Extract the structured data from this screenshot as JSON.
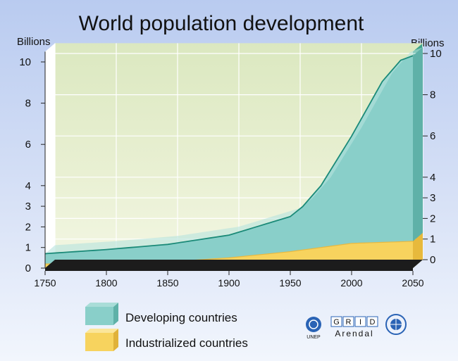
{
  "chart_data": {
    "type": "area",
    "title": "World population development",
    "ylabel_left": "Billions",
    "ylabel_right": "Billions",
    "x_ticks": [
      1750,
      1800,
      1850,
      1900,
      1950,
      2000,
      2050
    ],
    "y_ticks_left": [
      0,
      1,
      2,
      3,
      4,
      6,
      8,
      10
    ],
    "y_ticks_right": [
      0,
      1,
      2,
      3,
      4,
      6,
      8,
      10
    ],
    "xlim": [
      1750,
      2050
    ],
    "ylim": [
      0,
      10.5
    ],
    "stacked": true,
    "grid": true,
    "series": [
      {
        "name": "Industrialized countries",
        "color": "#f7d35e",
        "x": [
          1750,
          1800,
          1850,
          1900,
          1950,
          1975,
          2000,
          2025,
          2050
        ],
        "values": [
          0.2,
          0.25,
          0.3,
          0.5,
          0.8,
          1.0,
          1.2,
          1.25,
          1.3
        ]
      },
      {
        "name": "Developing countries",
        "color": "#89cfc9",
        "x": [
          1750,
          1800,
          1850,
          1900,
          1950,
          1960,
          1975,
          2000,
          2025,
          2040,
          2050
        ],
        "values": [
          0.5,
          0.65,
          0.85,
          1.1,
          1.7,
          2.1,
          3.0,
          5.2,
          7.8,
          8.8,
          9.0
        ]
      }
    ],
    "colors": {
      "developing_line": "#1b8a78",
      "floor": "#1c1c1c",
      "wall": "#dfe9c4",
      "grid": "#ffffff"
    }
  },
  "legend": {
    "items": [
      {
        "label": "Developing countries",
        "color": "#89cfc9"
      },
      {
        "label": "Industrialized countries",
        "color": "#f7d35e"
      }
    ]
  },
  "logos": {
    "unep_text": "UNEP",
    "grid_letters": [
      "G",
      "R",
      "I",
      "D"
    ],
    "arendal_text": "Arendal"
  }
}
